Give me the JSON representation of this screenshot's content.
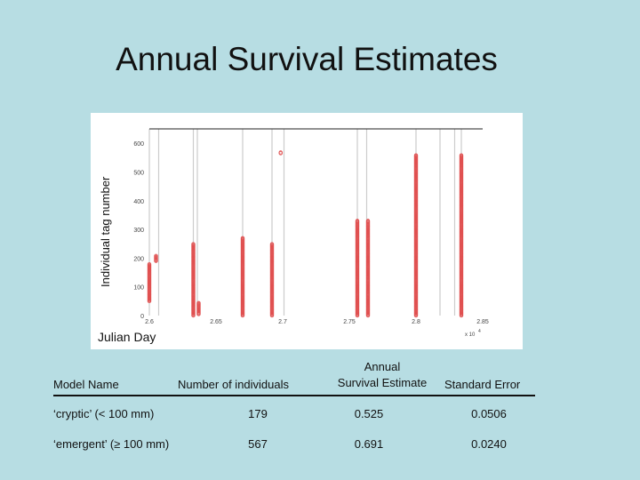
{
  "title": "Annual Survival Estimates",
  "chart_data": {
    "type": "scatter",
    "ylabel": "Individual tag number",
    "xlabel": "Julian Day",
    "x_exponent_label": "x 10",
    "x_exponent_power": "4",
    "xlim": [
      26000,
      28500
    ],
    "ylim": [
      0,
      650
    ],
    "x_ticks": [
      {
        "value": 26000,
        "label": "2.6"
      },
      {
        "value": 26500,
        "label": "2.65"
      },
      {
        "value": 27000,
        "label": "2.7"
      },
      {
        "value": 27500,
        "label": "2.75"
      },
      {
        "value": 28000,
        "label": "2.8"
      },
      {
        "value": 28500,
        "label": "2.85"
      }
    ],
    "y_ticks": [
      0,
      100,
      200,
      300,
      400,
      500,
      600
    ],
    "marker_color": "#e05050",
    "grid_color": "#cccccc",
    "sampling_days": [
      26000,
      26070,
      26330,
      26360,
      26700,
      26920,
      27010,
      27560,
      27630,
      28000,
      28180,
      28290,
      28340
    ],
    "clusters": [
      {
        "x": 26000,
        "y": [
          50,
          180
        ]
      },
      {
        "x": 26050,
        "y": [
          190,
          210
        ]
      },
      {
        "x": 26330,
        "y": [
          0,
          250
        ]
      },
      {
        "x": 26370,
        "y": [
          5,
          45
        ]
      },
      {
        "x": 26700,
        "y": [
          0,
          270
        ]
      },
      {
        "x": 26920,
        "y": [
          0,
          250
        ]
      },
      {
        "x": 26985,
        "y": [
          565,
          570
        ]
      },
      {
        "x": 27560,
        "y": [
          0,
          330
        ]
      },
      {
        "x": 27640,
        "y": [
          0,
          330
        ]
      },
      {
        "x": 28000,
        "y": [
          0,
          560
        ]
      },
      {
        "x": 28340,
        "y": [
          0,
          560
        ]
      }
    ]
  },
  "table": {
    "headers": {
      "model": "Model Name",
      "count": "Number of individuals",
      "estimate_line1": "Annual",
      "estimate_line2": "Survival Estimate",
      "se": "Standard Error"
    },
    "rows": [
      {
        "model": "‘cryptic’ (< 100 mm)",
        "count": "179",
        "estimate": "0.525",
        "se": "0.0506"
      },
      {
        "model": "‘emergent’ (≥ 100 mm)",
        "count": "567",
        "estimate": "0.691",
        "se": "0.0240"
      }
    ]
  }
}
